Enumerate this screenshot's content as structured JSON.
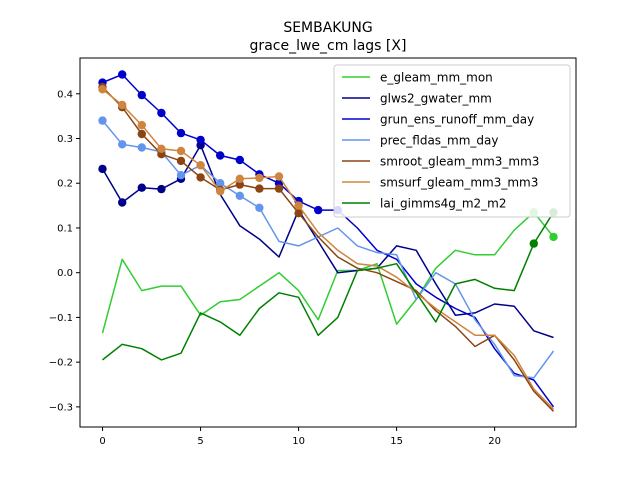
{
  "chart_data": {
    "type": "line",
    "title": "SEMBAKUNG",
    "subtitle": "grace_lwe_cm lags [X]",
    "xlabel": "",
    "ylabel": "",
    "xlim": [
      -1.15,
      24.15
    ],
    "ylim": [
      -0.345,
      0.48
    ],
    "x_ticks": [
      0,
      5,
      10,
      15,
      20
    ],
    "x_tick_labels": [
      "0",
      "5",
      "10",
      "15",
      "20"
    ],
    "y_ticks": [
      -0.3,
      -0.2,
      -0.1,
      0.0,
      0.1,
      0.2,
      0.3,
      0.4
    ],
    "y_tick_labels": [
      "−0.3",
      "−0.2",
      "−0.1",
      "0.0",
      "0.1",
      "0.2",
      "0.3",
      "0.4"
    ],
    "grid": false,
    "legend_position": "top-right",
    "x": [
      0,
      1,
      2,
      3,
      4,
      5,
      6,
      7,
      8,
      9,
      10,
      11,
      12,
      13,
      14,
      15,
      16,
      17,
      18,
      19,
      20,
      21,
      22,
      23
    ],
    "series": [
      {
        "name": "e_gleam_mm_mon",
        "color": "#32cd32",
        "values": [
          -0.135,
          0.03,
          -0.04,
          -0.03,
          -0.03,
          -0.095,
          -0.065,
          -0.06,
          -0.03,
          0.0,
          -0.04,
          -0.105,
          0.005,
          0.005,
          0.02,
          -0.115,
          -0.06,
          0.01,
          0.05,
          0.04,
          0.04,
          0.095,
          0.135,
          0.08
        ],
        "markers": [
          22,
          23
        ]
      },
      {
        "name": "glws2_gwater_mm",
        "color": "#00008b",
        "values": [
          0.232,
          0.157,
          0.19,
          0.187,
          0.21,
          0.285,
          0.175,
          0.105,
          0.075,
          0.035,
          0.14,
          0.07,
          0.0,
          0.005,
          0.01,
          0.06,
          0.05,
          -0.025,
          -0.095,
          -0.09,
          -0.07,
          -0.075,
          -0.13,
          -0.145
        ],
        "markers": [
          0,
          1,
          2,
          3,
          4,
          5
        ]
      },
      {
        "name": "grun_ens_runoff_mm_day",
        "color": "#0000cd",
        "values": [
          0.425,
          0.443,
          0.397,
          0.357,
          0.312,
          0.297,
          0.262,
          0.252,
          0.22,
          0.2,
          0.16,
          0.14,
          0.14,
          0.1,
          0.05,
          0.03,
          -0.025,
          -0.055,
          -0.08,
          -0.1,
          -0.17,
          -0.225,
          -0.24,
          -0.3
        ],
        "markers": [
          0,
          1,
          2,
          3,
          4,
          5,
          6,
          7,
          8,
          9,
          10,
          11,
          12
        ]
      },
      {
        "name": "prec_fldas_mm_day",
        "color": "#6495ed",
        "values": [
          0.34,
          0.287,
          0.28,
          0.27,
          0.218,
          0.24,
          0.2,
          0.172,
          0.145,
          0.07,
          0.06,
          0.08,
          0.1,
          0.06,
          0.045,
          0.04,
          -0.06,
          0.0,
          -0.025,
          -0.105,
          -0.16,
          -0.23,
          -0.235,
          -0.175
        ],
        "markers": [
          0,
          1,
          2,
          3,
          4,
          5,
          6,
          7,
          8
        ]
      },
      {
        "name": "smroot_gleam_mm3_mm3",
        "color": "#8b4513",
        "values": [
          0.415,
          0.37,
          0.31,
          0.265,
          0.25,
          0.213,
          0.185,
          0.197,
          0.188,
          0.188,
          0.133,
          0.08,
          0.035,
          0.01,
          0.0,
          -0.02,
          -0.04,
          -0.085,
          -0.12,
          -0.165,
          -0.14,
          -0.195,
          -0.265,
          -0.31
        ],
        "markers": [
          0,
          1,
          2,
          3,
          4,
          5,
          6,
          7,
          8,
          9,
          10
        ]
      },
      {
        "name": "smsurf_gleam_mm3_mm3",
        "color": "#cd853f",
        "values": [
          0.41,
          0.375,
          0.33,
          0.277,
          0.272,
          0.24,
          0.182,
          0.21,
          0.212,
          0.215,
          0.15,
          0.09,
          0.05,
          0.02,
          0.015,
          -0.01,
          -0.045,
          -0.08,
          -0.11,
          -0.14,
          -0.14,
          -0.185,
          -0.26,
          -0.305
        ],
        "markers": [
          0,
          1,
          2,
          3,
          4,
          5,
          6,
          7,
          8,
          9,
          10
        ]
      },
      {
        "name": "lai_gimms4g_m2_m2",
        "color": "#008000",
        "values": [
          -0.195,
          -0.16,
          -0.17,
          -0.195,
          -0.18,
          -0.09,
          -0.11,
          -0.14,
          -0.08,
          -0.045,
          -0.055,
          -0.14,
          -0.1,
          0.005,
          0.01,
          0.02,
          -0.045,
          -0.11,
          -0.025,
          -0.015,
          -0.035,
          -0.04,
          0.065,
          0.135
        ],
        "markers": [
          22,
          23
        ]
      }
    ]
  }
}
